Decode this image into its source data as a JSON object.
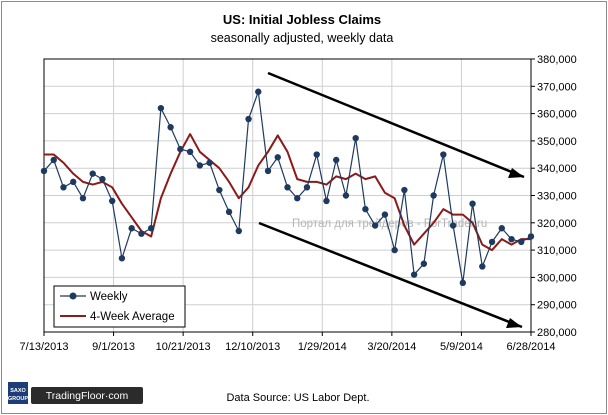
{
  "chart_data": {
    "type": "line",
    "title": "US: Initial Jobless Claims",
    "subtitle": "seasonally adjusted, weekly data",
    "xlabel": "",
    "ylabel": "",
    "x_tick_labels": [
      "7/13/2013",
      "9/1/2013",
      "10/21/2013",
      "12/10/2013",
      "1/29/2014",
      "3/20/2014",
      "5/9/2014",
      "6/28/2014"
    ],
    "y_tick_labels": [
      "280,000",
      "290,000",
      "300,000",
      "310,000",
      "320,000",
      "330,000",
      "340,000",
      "350,000",
      "360,000",
      "370,000",
      "380,000"
    ],
    "ylim": [
      280000,
      380000
    ],
    "y_ticks": [
      280000,
      290000,
      300000,
      310000,
      320000,
      330000,
      340000,
      350000,
      360000,
      370000,
      380000
    ],
    "grid": true,
    "legend_position": "bottom-left",
    "x_start": "2013-07-13",
    "x_end": "2014-06-28",
    "series": [
      {
        "name": "Weekly",
        "color": "#1f3a5f",
        "marker": "circle",
        "x": [
          "2013-07-13",
          "2013-07-20",
          "2013-07-27",
          "2013-08-03",
          "2013-08-10",
          "2013-08-17",
          "2013-08-24",
          "2013-08-31",
          "2013-09-07",
          "2013-09-14",
          "2013-09-21",
          "2013-09-28",
          "2013-10-05",
          "2013-10-12",
          "2013-10-19",
          "2013-10-26",
          "2013-11-02",
          "2013-11-09",
          "2013-11-16",
          "2013-11-23",
          "2013-11-30",
          "2013-12-07",
          "2013-12-14",
          "2013-12-21",
          "2013-12-28",
          "2014-01-04",
          "2014-01-11",
          "2014-01-18",
          "2014-01-25",
          "2014-02-01",
          "2014-02-08",
          "2014-02-15",
          "2014-02-22",
          "2014-03-01",
          "2014-03-08",
          "2014-03-15",
          "2014-03-22",
          "2014-03-29",
          "2014-04-05",
          "2014-04-12",
          "2014-04-19",
          "2014-04-26",
          "2014-05-03",
          "2014-05-10",
          "2014-05-17",
          "2014-05-24",
          "2014-05-31",
          "2014-06-07",
          "2014-06-14",
          "2014-06-21",
          "2014-06-28"
        ],
        "values": [
          339000,
          343000,
          333000,
          335000,
          329000,
          338000,
          336000,
          328000,
          307000,
          318000,
          316000,
          318000,
          362000,
          355000,
          347000,
          346000,
          341000,
          342000,
          332000,
          324000,
          317000,
          358000,
          368000,
          339000,
          344000,
          333000,
          329000,
          333000,
          345000,
          328000,
          343000,
          330000,
          351000,
          325000,
          319000,
          323000,
          310000,
          332000,
          301000,
          305000,
          330000,
          345000,
          319000,
          298000,
          327000,
          304000,
          313000,
          318000,
          314000,
          313000,
          315000
        ]
      },
      {
        "name": "4-Week Average",
        "color": "#8b1a1a",
        "marker": "none",
        "x": [
          "2013-07-13",
          "2013-07-20",
          "2013-07-27",
          "2013-08-03",
          "2013-08-10",
          "2013-08-17",
          "2013-08-24",
          "2013-08-31",
          "2013-09-07",
          "2013-09-14",
          "2013-09-21",
          "2013-09-28",
          "2013-10-05",
          "2013-10-12",
          "2013-10-19",
          "2013-10-26",
          "2013-11-02",
          "2013-11-09",
          "2013-11-16",
          "2013-11-23",
          "2013-11-30",
          "2013-12-07",
          "2013-12-14",
          "2013-12-21",
          "2013-12-28",
          "2014-01-04",
          "2014-01-11",
          "2014-01-18",
          "2014-01-25",
          "2014-02-01",
          "2014-02-08",
          "2014-02-15",
          "2014-02-22",
          "2014-03-01",
          "2014-03-08",
          "2014-03-15",
          "2014-03-22",
          "2014-03-29",
          "2014-04-05",
          "2014-04-12",
          "2014-04-19",
          "2014-04-26",
          "2014-05-03",
          "2014-05-10",
          "2014-05-17",
          "2014-05-24",
          "2014-05-31",
          "2014-06-07",
          "2014-06-14",
          "2014-06-21",
          "2014-06-28"
        ],
        "values": [
          345000,
          345000,
          342000,
          338000,
          335000,
          334000,
          335000,
          333000,
          327000,
          322000,
          317000,
          315000,
          329000,
          338000,
          346000,
          352500,
          346000,
          343000,
          340000,
          335000,
          329000,
          333000,
          341000,
          346000,
          352000,
          346000,
          336000,
          335000,
          335000,
          334000,
          337000,
          336000,
          338000,
          336000,
          337000,
          331000,
          329000,
          319000,
          312000,
          316000,
          320000,
          325000,
          323000,
          323000,
          320000,
          312000,
          310000,
          314000,
          312000,
          314000,
          314000
        ]
      }
    ],
    "annotations": [
      "trend-line-upper",
      "trend-line-lower"
    ]
  },
  "footer": {
    "source": "Data Source: US Labor Dept.",
    "saxo_line1": "SAXO",
    "saxo_line2": "GROUP",
    "brand": "TradingFloor·com"
  },
  "watermark": "Портал для трейдеров - ForTrader.ru",
  "colors": {
    "weekly_line": "#1f3a5f",
    "average_line": "#8b1a1a",
    "gridline": "#cfcfcf",
    "brand_bg": "#2b2b2b",
    "saxo_bg": "#1d3c78"
  }
}
